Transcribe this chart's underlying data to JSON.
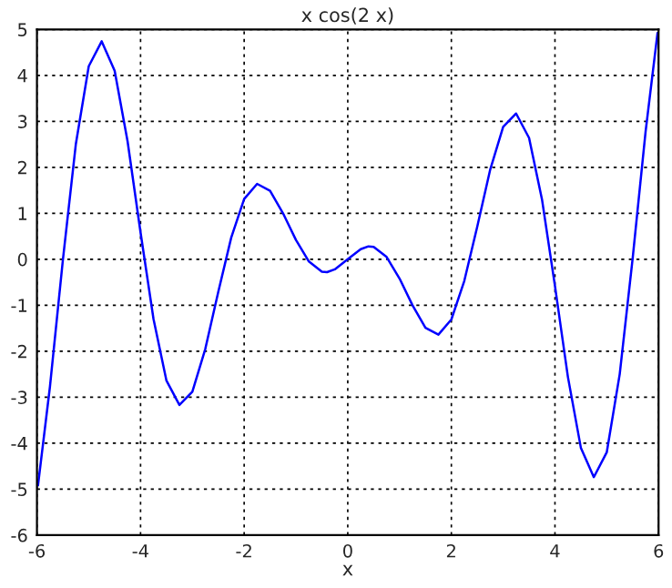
{
  "chart_data": {
    "type": "line",
    "title": "x cos(2 x)",
    "xlabel": "x",
    "xlim": [
      -6,
      6
    ],
    "ylim": [
      -6,
      5
    ],
    "xticks": [
      -6,
      -4,
      -2,
      0,
      2,
      4,
      6
    ],
    "yticks": [
      -6,
      -5,
      -4,
      -3,
      -2,
      -1,
      0,
      1,
      2,
      3,
      4,
      5
    ],
    "grid": true,
    "line_style": "solid",
    "marker": "none",
    "series": [
      {
        "color": "#0000ff",
        "x": [
          -5.98,
          -5.75,
          -5.5,
          -5.25,
          -5,
          -4.75,
          -4.5,
          -4.25,
          -4,
          -3.75,
          -3.5,
          -3.25,
          -3,
          -2.75,
          -2.5,
          -2.25,
          -2,
          -1.75,
          -1.5,
          -1.25,
          -1,
          -0.75,
          -0.5,
          -0.4,
          -0.25,
          0,
          0.25,
          0.4,
          0.5,
          0.75,
          1,
          1.25,
          1.5,
          1.75,
          2,
          2.25,
          2.5,
          2.75,
          3,
          3.25,
          3.5,
          3.75,
          4,
          4.25,
          4.5,
          4.75,
          5,
          5.25,
          5.5,
          5.75,
          5.98
        ],
        "values": [
          -4.92,
          -2.78,
          -0.02,
          2.5,
          4.2,
          4.74,
          4.1,
          2.56,
          0.58,
          -1.3,
          -2.64,
          -3.17,
          -2.88,
          -1.95,
          -0.71,
          0.47,
          1.31,
          1.64,
          1.49,
          1.0,
          0.42,
          -0.05,
          -0.27,
          -0.28,
          -0.22,
          0,
          0.22,
          0.28,
          0.27,
          0.05,
          -0.42,
          -1.0,
          -1.49,
          -1.64,
          -1.31,
          -0.47,
          0.71,
          1.95,
          2.88,
          3.17,
          2.64,
          1.3,
          -0.58,
          -2.56,
          -4.1,
          -4.74,
          -4.2,
          -2.5,
          0.02,
          2.78,
          4.92
        ]
      }
    ]
  }
}
